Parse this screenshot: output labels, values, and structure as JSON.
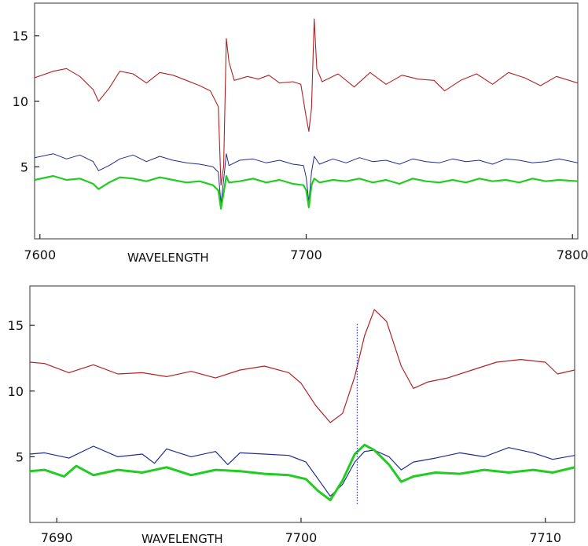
{
  "chart_data": [
    {
      "type": "line",
      "title": "",
      "xlabel": "WAVELENGTH",
      "ylabel": "",
      "xlim": [
        7598,
        7802
      ],
      "ylim": [
        -0.5,
        17.5
      ],
      "x_ticks": [
        "7600",
        "7700",
        "7800"
      ],
      "y_ticks": [
        "5",
        "10",
        "15"
      ],
      "grid": false,
      "series": [
        {
          "color": "#b22222",
          "stroke_width": 1.1,
          "points": [
            [
              7598,
              11.8
            ],
            [
              7605,
              12.3
            ],
            [
              7610,
              12.5
            ],
            [
              7615,
              11.9
            ],
            [
              7620,
              10.9
            ],
            [
              7622,
              10.0
            ],
            [
              7626,
              11.0
            ],
            [
              7630,
              12.3
            ],
            [
              7635,
              12.1
            ],
            [
              7640,
              11.4
            ],
            [
              7645,
              12.2
            ],
            [
              7650,
              12.0
            ],
            [
              7655,
              11.6
            ],
            [
              7660,
              11.2
            ],
            [
              7664,
              10.8
            ],
            [
              7667,
              9.6
            ],
            [
              7668,
              3.6
            ],
            [
              7669,
              5.0
            ],
            [
              7670,
              14.8
            ],
            [
              7671,
              13.0
            ],
            [
              7673,
              11.6
            ],
            [
              7678,
              11.9
            ],
            [
              7682,
              11.7
            ],
            [
              7686,
              12.0
            ],
            [
              7690,
              11.4
            ],
            [
              7695,
              11.5
            ],
            [
              7698,
              11.3
            ],
            [
              7700,
              8.8
            ],
            [
              7701,
              7.7
            ],
            [
              7702,
              9.5
            ],
            [
              7703,
              16.3
            ],
            [
              7704,
              12.5
            ],
            [
              7706,
              11.5
            ],
            [
              7712,
              12.1
            ],
            [
              7718,
              11.1
            ],
            [
              7724,
              12.2
            ],
            [
              7730,
              11.3
            ],
            [
              7736,
              12.0
            ],
            [
              7742,
              11.7
            ],
            [
              7748,
              11.6
            ],
            [
              7752,
              10.8
            ],
            [
              7758,
              11.6
            ],
            [
              7764,
              12.1
            ],
            [
              7770,
              11.3
            ],
            [
              7776,
              12.2
            ],
            [
              7782,
              11.8
            ],
            [
              7788,
              11.2
            ],
            [
              7794,
              11.9
            ],
            [
              7802,
              11.4
            ]
          ]
        },
        {
          "color": "#1f2d8c",
          "stroke_width": 1.0,
          "points": [
            [
              7598,
              5.7
            ],
            [
              7605,
              6.0
            ],
            [
              7610,
              5.6
            ],
            [
              7615,
              5.9
            ],
            [
              7620,
              5.4
            ],
            [
              7622,
              4.7
            ],
            [
              7626,
              5.1
            ],
            [
              7630,
              5.6
            ],
            [
              7635,
              5.9
            ],
            [
              7640,
              5.4
            ],
            [
              7645,
              5.8
            ],
            [
              7650,
              5.5
            ],
            [
              7655,
              5.3
            ],
            [
              7660,
              5.2
            ],
            [
              7665,
              5.0
            ],
            [
              7667,
              4.6
            ],
            [
              7668,
              2.2
            ],
            [
              7669,
              4.0
            ],
            [
              7670,
              6.0
            ],
            [
              7671,
              5.1
            ],
            [
              7675,
              5.5
            ],
            [
              7680,
              5.6
            ],
            [
              7685,
              5.3
            ],
            [
              7690,
              5.5
            ],
            [
              7695,
              5.2
            ],
            [
              7699,
              5.1
            ],
            [
              7700,
              4.2
            ],
            [
              7701,
              2.3
            ],
            [
              7702,
              4.6
            ],
            [
              7703,
              5.8
            ],
            [
              7705,
              5.2
            ],
            [
              7710,
              5.6
            ],
            [
              7715,
              5.3
            ],
            [
              7720,
              5.7
            ],
            [
              7725,
              5.4
            ],
            [
              7730,
              5.5
            ],
            [
              7735,
              5.2
            ],
            [
              7740,
              5.6
            ],
            [
              7745,
              5.4
            ],
            [
              7750,
              5.3
            ],
            [
              7755,
              5.6
            ],
            [
              7760,
              5.4
            ],
            [
              7765,
              5.5
            ],
            [
              7770,
              5.2
            ],
            [
              7775,
              5.6
            ],
            [
              7780,
              5.5
            ],
            [
              7785,
              5.3
            ],
            [
              7790,
              5.4
            ],
            [
              7795,
              5.6
            ],
            [
              7802,
              5.3
            ]
          ]
        },
        {
          "color": "#22cc22",
          "stroke_width": 2.2,
          "points": [
            [
              7598,
              4.0
            ],
            [
              7605,
              4.3
            ],
            [
              7610,
              4.0
            ],
            [
              7615,
              4.1
            ],
            [
              7620,
              3.7
            ],
            [
              7622,
              3.3
            ],
            [
              7626,
              3.8
            ],
            [
              7630,
              4.2
            ],
            [
              7635,
              4.1
            ],
            [
              7640,
              3.9
            ],
            [
              7645,
              4.2
            ],
            [
              7650,
              4.0
            ],
            [
              7655,
              3.8
            ],
            [
              7660,
              3.9
            ],
            [
              7665,
              3.6
            ],
            [
              7667,
              3.2
            ],
            [
              7668,
              1.8
            ],
            [
              7669,
              3.0
            ],
            [
              7670,
              4.3
            ],
            [
              7671,
              3.8
            ],
            [
              7675,
              3.9
            ],
            [
              7680,
              4.1
            ],
            [
              7685,
              3.8
            ],
            [
              7690,
              4.0
            ],
            [
              7695,
              3.7
            ],
            [
              7699,
              3.6
            ],
            [
              7700,
              3.2
            ],
            [
              7701,
              1.9
            ],
            [
              7702,
              3.6
            ],
            [
              7703,
              4.1
            ],
            [
              7705,
              3.8
            ],
            [
              7710,
              4.0
            ],
            [
              7715,
              3.9
            ],
            [
              7720,
              4.1
            ],
            [
              7725,
              3.8
            ],
            [
              7730,
              4.0
            ],
            [
              7735,
              3.7
            ],
            [
              7740,
              4.1
            ],
            [
              7745,
              3.9
            ],
            [
              7750,
              3.8
            ],
            [
              7755,
              4.0
            ],
            [
              7760,
              3.8
            ],
            [
              7765,
              4.1
            ],
            [
              7770,
              3.9
            ],
            [
              7775,
              4.0
            ],
            [
              7780,
              3.8
            ],
            [
              7785,
              4.1
            ],
            [
              7790,
              3.9
            ],
            [
              7795,
              4.0
            ],
            [
              7802,
              3.9
            ]
          ]
        }
      ]
    },
    {
      "type": "line",
      "title": "",
      "xlabel": "WAVELENGTH",
      "ylabel": "",
      "xlim": [
        7688.9,
        7711.2
      ],
      "ylim": [
        0.0,
        18.0
      ],
      "x_ticks": [
        "7690",
        "7700",
        "7710"
      ],
      "y_ticks": [
        "5",
        "10",
        "15"
      ],
      "grid": false,
      "marker_line": {
        "x": 7702.3,
        "y_from": 1.3,
        "y_to": 15.1,
        "color": "#3a3acc",
        "style": "dotted"
      },
      "series": [
        {
          "color": "#b22222",
          "stroke_width": 1.2,
          "points": [
            [
              7688.9,
              12.2
            ],
            [
              7689.5,
              12.1
            ],
            [
              7690.5,
              11.4
            ],
            [
              7691.5,
              12.0
            ],
            [
              7692.5,
              11.3
            ],
            [
              7693.5,
              11.4
            ],
            [
              7694.5,
              11.1
            ],
            [
              7695.5,
              11.5
            ],
            [
              7696.5,
              11.0
            ],
            [
              7697.5,
              11.6
            ],
            [
              7698.5,
              11.9
            ],
            [
              7699.5,
              11.4
            ],
            [
              7700.0,
              10.6
            ],
            [
              7700.6,
              8.9
            ],
            [
              7701.2,
              7.6
            ],
            [
              7701.7,
              8.3
            ],
            [
              7702.2,
              11.1
            ],
            [
              7702.6,
              14.2
            ],
            [
              7703.0,
              16.2
            ],
            [
              7703.5,
              15.3
            ],
            [
              7704.1,
              11.9
            ],
            [
              7704.6,
              10.2
            ],
            [
              7705.2,
              10.7
            ],
            [
              7706.0,
              11.0
            ],
            [
              7707.0,
              11.6
            ],
            [
              7708.0,
              12.2
            ],
            [
              7709.0,
              12.4
            ],
            [
              7710.0,
              12.2
            ],
            [
              7710.5,
              11.3
            ],
            [
              7711.2,
              11.6
            ]
          ]
        },
        {
          "color": "#1f2d8c",
          "stroke_width": 1.2,
          "points": [
            [
              7688.9,
              5.2
            ],
            [
              7689.5,
              5.3
            ],
            [
              7690.5,
              4.9
            ],
            [
              7691.5,
              5.8
            ],
            [
              7692.5,
              5.0
            ],
            [
              7693.5,
              5.2
            ],
            [
              7694.0,
              4.5
            ],
            [
              7694.5,
              5.6
            ],
            [
              7695.5,
              5.0
            ],
            [
              7696.5,
              5.4
            ],
            [
              7697.0,
              4.4
            ],
            [
              7697.5,
              5.3
            ],
            [
              7698.5,
              5.2
            ],
            [
              7699.5,
              5.1
            ],
            [
              7700.2,
              4.6
            ],
            [
              7700.7,
              3.3
            ],
            [
              7701.2,
              2.0
            ],
            [
              7701.7,
              2.9
            ],
            [
              7702.2,
              4.6
            ],
            [
              7702.6,
              5.4
            ],
            [
              7703.0,
              5.5
            ],
            [
              7703.6,
              5.0
            ],
            [
              7704.1,
              4.0
            ],
            [
              7704.6,
              4.6
            ],
            [
              7705.5,
              4.9
            ],
            [
              7706.5,
              5.3
            ],
            [
              7707.5,
              5.0
            ],
            [
              7708.5,
              5.7
            ],
            [
              7709.5,
              5.3
            ],
            [
              7710.3,
              4.8
            ],
            [
              7711.2,
              5.1
            ]
          ]
        },
        {
          "color": "#22cc22",
          "stroke_width": 3.0,
          "points": [
            [
              7688.9,
              3.9
            ],
            [
              7689.5,
              4.0
            ],
            [
              7690.3,
              3.5
            ],
            [
              7690.8,
              4.3
            ],
            [
              7691.5,
              3.6
            ],
            [
              7692.5,
              4.0
            ],
            [
              7693.5,
              3.8
            ],
            [
              7694.5,
              4.2
            ],
            [
              7695.5,
              3.6
            ],
            [
              7696.5,
              4.0
            ],
            [
              7697.5,
              3.9
            ],
            [
              7698.5,
              3.7
            ],
            [
              7699.5,
              3.6
            ],
            [
              7700.2,
              3.3
            ],
            [
              7700.7,
              2.4
            ],
            [
              7701.2,
              1.7
            ],
            [
              7701.7,
              3.2
            ],
            [
              7702.2,
              5.2
            ],
            [
              7702.6,
              5.9
            ],
            [
              7703.0,
              5.5
            ],
            [
              7703.6,
              4.4
            ],
            [
              7704.1,
              3.1
            ],
            [
              7704.6,
              3.5
            ],
            [
              7705.5,
              3.8
            ],
            [
              7706.5,
              3.7
            ],
            [
              7707.5,
              4.0
            ],
            [
              7708.5,
              3.8
            ],
            [
              7709.5,
              4.0
            ],
            [
              7710.3,
              3.8
            ],
            [
              7711.2,
              4.2
            ]
          ]
        }
      ]
    }
  ]
}
